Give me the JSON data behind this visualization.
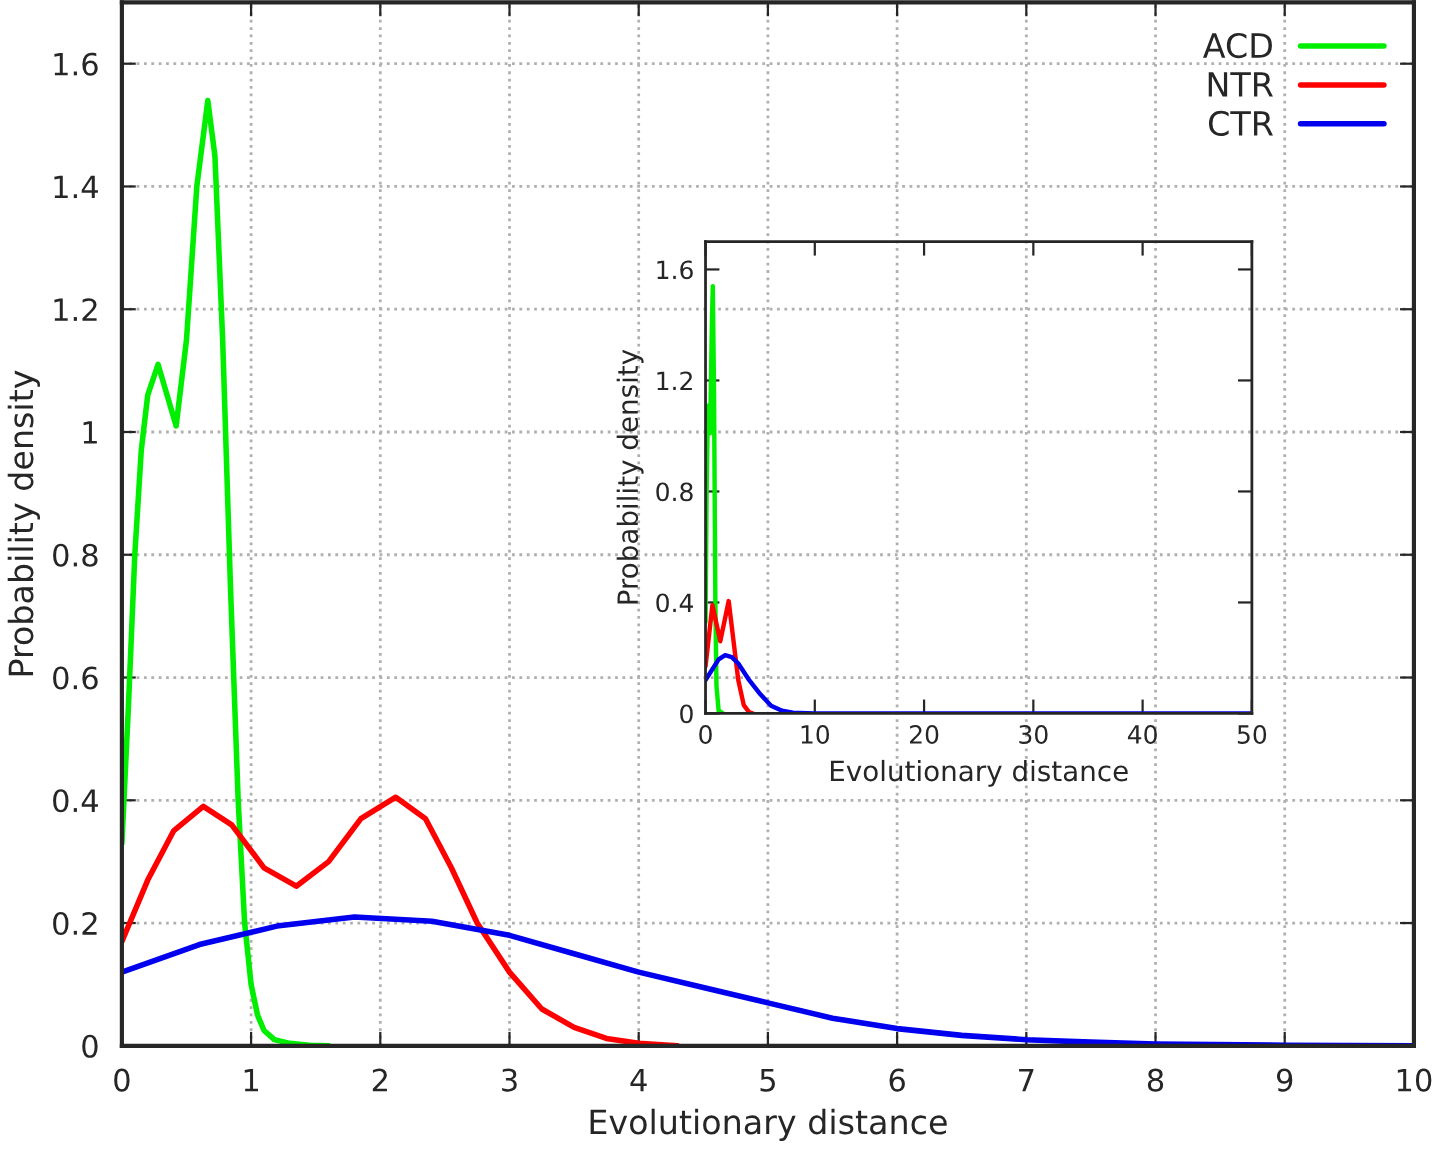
{
  "chart_data": [
    {
      "type": "line",
      "xlabel": "Evolutionary distance",
      "ylabel": "Probability density",
      "xlim": [
        0,
        10
      ],
      "ylim": [
        0,
        1.7
      ],
      "xticks": [
        0,
        1,
        2,
        3,
        4,
        5,
        6,
        7,
        8,
        9,
        10
      ],
      "yticks": [
        0,
        0.2,
        0.4,
        0.6,
        0.8,
        1,
        1.2,
        1.4,
        1.6
      ],
      "grid": true,
      "legend": "top right",
      "line_style": "solid",
      "series": [
        {
          "name": "ACD",
          "color": "#00ee00",
          "x": [
            0,
            0.05,
            0.1,
            0.15,
            0.2,
            0.28,
            0.35,
            0.42,
            0.5,
            0.58,
            0.665,
            0.72,
            0.78,
            0.84,
            0.9,
            0.95,
            1.0,
            1.05,
            1.1,
            1.18,
            1.3,
            1.45,
            1.6
          ],
          "values": [
            0.33,
            0.55,
            0.8,
            0.97,
            1.06,
            1.11,
            1.06,
            1.01,
            1.15,
            1.4,
            1.54,
            1.45,
            1.15,
            0.75,
            0.4,
            0.2,
            0.1,
            0.05,
            0.025,
            0.01,
            0.004,
            0.001,
            0
          ]
        },
        {
          "name": "NTR",
          "color": "#ff0000",
          "x": [
            0,
            0.2,
            0.4,
            0.63,
            0.85,
            1.1,
            1.35,
            1.6,
            1.85,
            2.12,
            2.35,
            2.55,
            2.75,
            3.0,
            3.25,
            3.5,
            3.75,
            4.0,
            4.3
          ],
          "values": [
            0.17,
            0.27,
            0.35,
            0.39,
            0.36,
            0.29,
            0.26,
            0.3,
            0.37,
            0.405,
            0.37,
            0.29,
            0.2,
            0.12,
            0.06,
            0.03,
            0.012,
            0.004,
            0
          ]
        },
        {
          "name": "CTR",
          "color": "#0000ee",
          "x": [
            0,
            0.6,
            1.2,
            1.8,
            2.4,
            3.0,
            3.5,
            4.0,
            4.5,
            5.0,
            5.5,
            6.0,
            6.5,
            7.0,
            7.5,
            8.0,
            9.0,
            10.0
          ],
          "values": [
            0.12,
            0.165,
            0.195,
            0.21,
            0.203,
            0.18,
            0.15,
            0.12,
            0.095,
            0.07,
            0.045,
            0.028,
            0.017,
            0.01,
            0.006,
            0.003,
            0.001,
            0
          ]
        }
      ]
    },
    {
      "type": "line",
      "xlabel": "Evolutionary distance",
      "ylabel": "Probability density",
      "xlim": [
        0,
        50
      ],
      "ylim": [
        0,
        1.7
      ],
      "xticks": [
        0,
        10,
        20,
        30,
        40,
        50
      ],
      "yticks": [
        0,
        0.4,
        0.8,
        1.2,
        1.6
      ],
      "grid": false,
      "line_style": "solid",
      "series": [
        {
          "color": "#00ee00",
          "x": [
            0,
            0.1,
            0.2,
            0.28,
            0.42,
            0.58,
            0.665,
            0.78,
            0.9,
            1.0,
            1.2,
            1.6
          ],
          "values": [
            0.33,
            0.8,
            1.06,
            1.11,
            1.01,
            1.4,
            1.54,
            1.15,
            0.4,
            0.1,
            0.01,
            0
          ]
        },
        {
          "color": "#ff0000",
          "x": [
            0,
            0.63,
            1.35,
            2.12,
            2.75,
            3.0,
            3.5,
            4.0,
            4.3
          ],
          "values": [
            0.17,
            0.39,
            0.26,
            0.405,
            0.2,
            0.12,
            0.03,
            0.004,
            0
          ]
        },
        {
          "color": "#0000ee",
          "x": [
            0,
            1.2,
            1.8,
            2.4,
            3.0,
            4.0,
            5.0,
            6.0,
            7.0,
            8.0,
            10.0,
            20.0,
            30.0,
            40.0,
            50.0
          ],
          "values": [
            0.12,
            0.195,
            0.21,
            0.203,
            0.18,
            0.12,
            0.07,
            0.028,
            0.01,
            0.003,
            0,
            0,
            0,
            0,
            0
          ]
        }
      ]
    }
  ]
}
